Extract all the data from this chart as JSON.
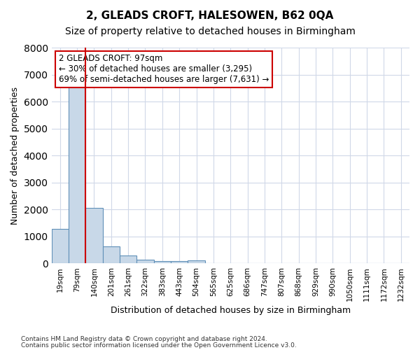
{
  "title1": "2, GLEADS CROFT, HALESOWEN, B62 0QA",
  "title2": "Size of property relative to detached houses in Birmingham",
  "xlabel": "Distribution of detached houses by size in Birmingham",
  "ylabel": "Number of detached properties",
  "footnote1": "Contains HM Land Registry data © Crown copyright and database right 2024.",
  "footnote2": "Contains public sector information licensed under the Open Government Licence v3.0.",
  "bin_labels": [
    "19sqm",
    "79sqm",
    "140sqm",
    "201sqm",
    "261sqm",
    "322sqm",
    "383sqm",
    "443sqm",
    "504sqm",
    "565sqm",
    "625sqm",
    "686sqm",
    "747sqm",
    "807sqm",
    "868sqm",
    "929sqm",
    "990sqm",
    "1050sqm",
    "1111sqm",
    "1172sqm",
    "1232sqm"
  ],
  "bar_values": [
    1295,
    6550,
    2070,
    640,
    290,
    140,
    90,
    80,
    110,
    0,
    0,
    0,
    0,
    0,
    0,
    0,
    0,
    0,
    0,
    0,
    0
  ],
  "bar_color": "#c8d8e8",
  "bar_edge_color": "#6090b8",
  "grid_color": "#d0d8e8",
  "vline_color": "#cc0000",
  "annotation_text": "2 GLEADS CROFT: 97sqm\n← 30% of detached houses are smaller (3,295)\n69% of semi-detached houses are larger (7,631) →",
  "annotation_box_color": "#cc0000",
  "ylim": [
    0,
    8000
  ],
  "yticks": [
    0,
    1000,
    2000,
    3000,
    4000,
    5000,
    6000,
    7000,
    8000
  ],
  "background_color": "#ffffff",
  "title1_fontsize": 11,
  "title2_fontsize": 10
}
